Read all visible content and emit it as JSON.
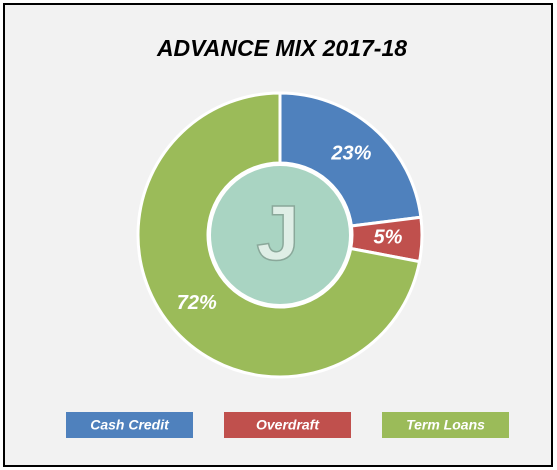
{
  "chart_data": {
    "type": "donut",
    "title": "ADVANCE MIX 2017-18",
    "categories": [
      "Cash Credit",
      "Overdraft",
      "Term Loans"
    ],
    "values": [
      23,
      5,
      72
    ],
    "value_labels": [
      "23%",
      "5%",
      "72%"
    ],
    "colors": [
      "#4f81bd",
      "#c0504d",
      "#9bbb59"
    ],
    "center_label": "J",
    "legend": "bottom"
  }
}
